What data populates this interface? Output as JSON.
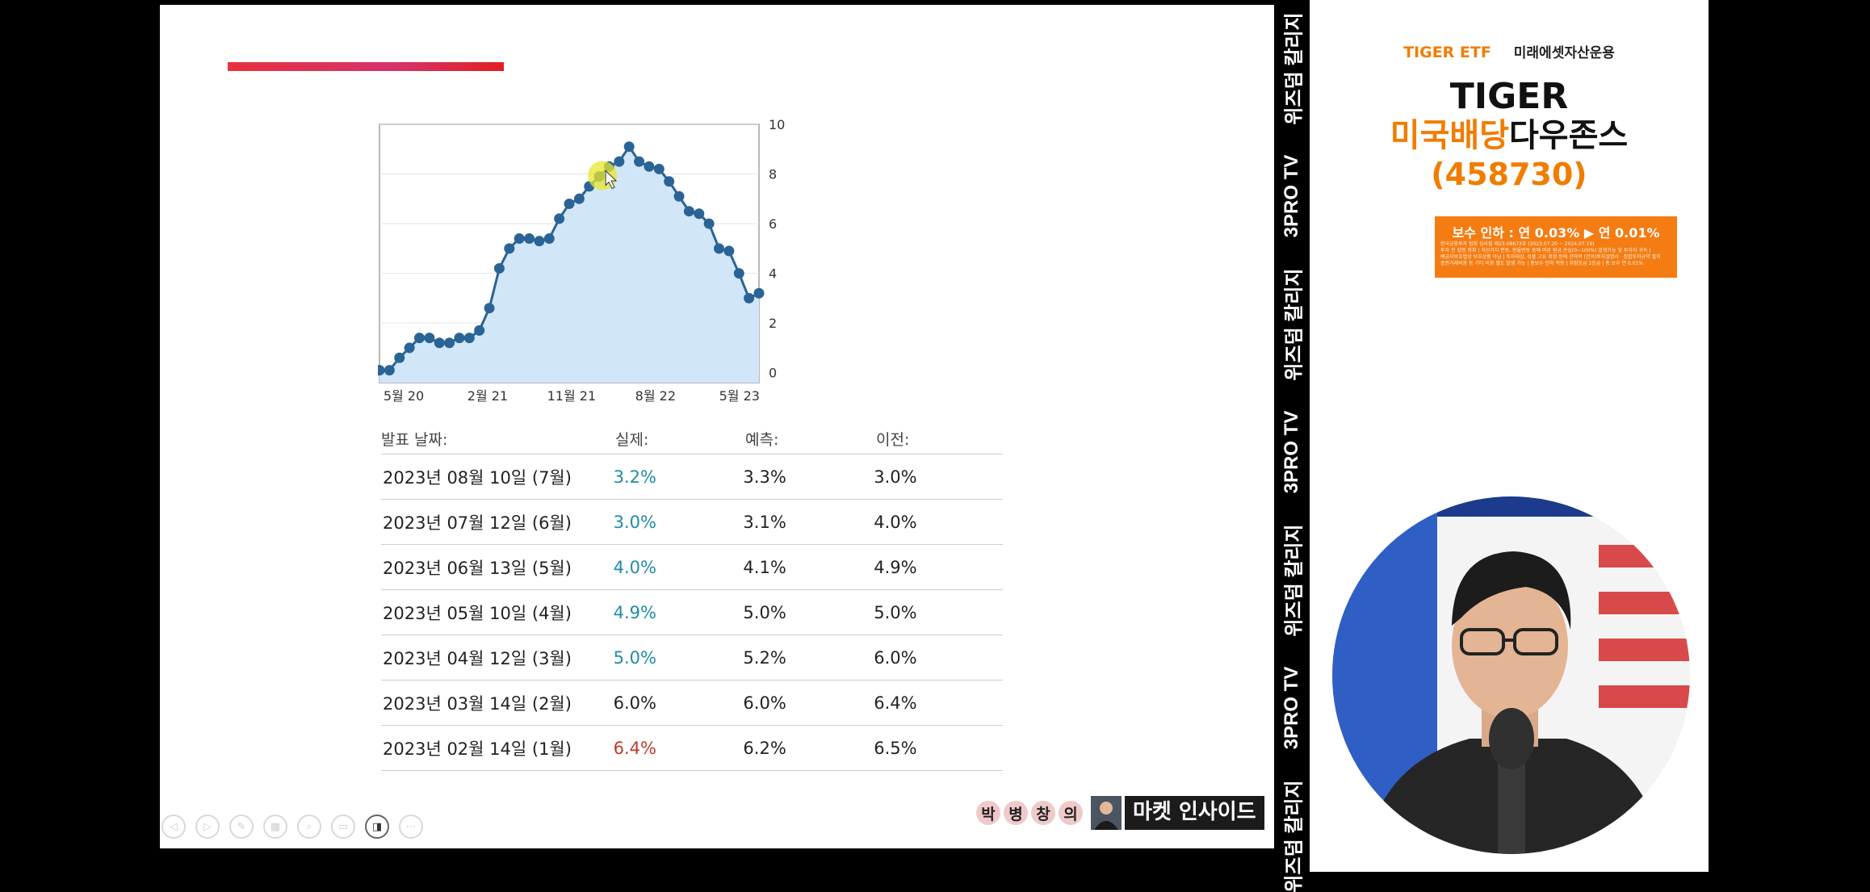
{
  "chart_data": {
    "type": "area",
    "x_tick_labels": [
      "5월 20",
      "2월 21",
      "11월 21",
      "8월 22",
      "5월 23"
    ],
    "y_ticks": [
      0,
      2,
      4,
      6,
      8,
      10
    ],
    "ylim": [
      -0.4,
      10
    ],
    "grid": true,
    "series_color": "#2a6496",
    "fill_color": "#d2e6fa",
    "values": [
      0.1,
      0.1,
      0.6,
      1.0,
      1.4,
      1.4,
      1.2,
      1.2,
      1.4,
      1.4,
      1.7,
      2.6,
      4.2,
      5.0,
      5.4,
      5.4,
      5.3,
      5.4,
      6.2,
      6.8,
      7.0,
      7.5,
      7.9,
      8.3,
      8.5,
      9.1,
      8.5,
      8.3,
      8.2,
      7.7,
      7.1,
      6.5,
      6.4,
      6.0,
      5.0,
      4.9,
      4.0,
      3.0,
      3.2
    ]
  },
  "table": {
    "headers": [
      "발표 날짜:",
      "실제:",
      "예측:",
      "이전:"
    ],
    "rows": [
      {
        "date": "2023년 08월 10일 (7월)",
        "actual": "3.2%",
        "forecast": "3.3%",
        "previous": "3.0%",
        "tone": "pos"
      },
      {
        "date": "2023년 07월 12일 (6월)",
        "actual": "3.0%",
        "forecast": "3.1%",
        "previous": "4.0%",
        "tone": "pos"
      },
      {
        "date": "2023년 06월 13일 (5월)",
        "actual": "4.0%",
        "forecast": "4.1%",
        "previous": "4.9%",
        "tone": "pos"
      },
      {
        "date": "2023년 05월 10일 (4월)",
        "actual": "4.9%",
        "forecast": "5.0%",
        "previous": "5.0%",
        "tone": "pos"
      },
      {
        "date": "2023년 04월 12일 (3월)",
        "actual": "5.0%",
        "forecast": "5.2%",
        "previous": "6.0%",
        "tone": "pos"
      },
      {
        "date": "2023년 03월 14일 (2월)",
        "actual": "6.0%",
        "forecast": "6.0%",
        "previous": "6.4%",
        "tone": "neutral"
      },
      {
        "date": "2023년 02월 14일 (1월)",
        "actual": "6.4%",
        "forecast": "6.2%",
        "previous": "6.5%",
        "tone": "neg"
      }
    ]
  },
  "colors": {
    "positive": "#1f8ca8",
    "negative": "#c0392b",
    "accent": "#f07d00"
  },
  "slide_controls": [
    {
      "icon": "prev-arrow-icon",
      "glyph": "◁"
    },
    {
      "icon": "play-icon",
      "glyph": "▷"
    },
    {
      "icon": "pen-icon",
      "glyph": "✎"
    },
    {
      "icon": "slides-grid-icon",
      "glyph": "▦"
    },
    {
      "icon": "zoom-icon",
      "glyph": "⌕"
    },
    {
      "icon": "subtitles-icon",
      "glyph": "▭"
    },
    {
      "icon": "video-icon",
      "glyph": "◨"
    },
    {
      "icon": "more-icon",
      "glyph": "⋯"
    }
  ],
  "show_logo": {
    "syllables": [
      "박",
      "병",
      "창",
      "의"
    ],
    "title": "마켓 인사이드"
  },
  "side_stripe": [
    "위즈덤 칼리지",
    "3PRO TV",
    "위즈덤 칼리지",
    "3PRO TV",
    "위즈덤 칼리지",
    "3PRO TV",
    "위즈덤 칼리지"
  ],
  "sidebar": {
    "brand_tiger": "TIGER ETF",
    "brand_company": "미래에셋자산운용",
    "etf_line1": "TIGER",
    "etf_line2_orange": "미국배당",
    "etf_line2_black": "다우존스",
    "etf_code": "(458730)",
    "fee_text": "보수 인하 : 연 0.03% ▶ 연 0.01%",
    "fee_fine_1": "한국금융투자 협회 심사필 제23-08673호 (2023.07.20 ~ 2024.07.19)",
    "fee_fine_2": "투자 전 설명 청취 | 자산가치 변동, 환율변동 등에 따른 원금 손실(0~100%) 발생가능 및 투자자 귀속 |",
    "fee_fine_3": "예금자보호법상 보호상품 아님 | 투자대상, 성품 고유 위험 등에 관하여 (간이)투자설명서 · 집합투자규약 필히",
    "fee_fine_4": "증권거래비용 등 기타 비용 별도 발생 가능 | 총보수 인하 적용 | 위험등급 2등급 | 총 보수 연 0.01%"
  }
}
